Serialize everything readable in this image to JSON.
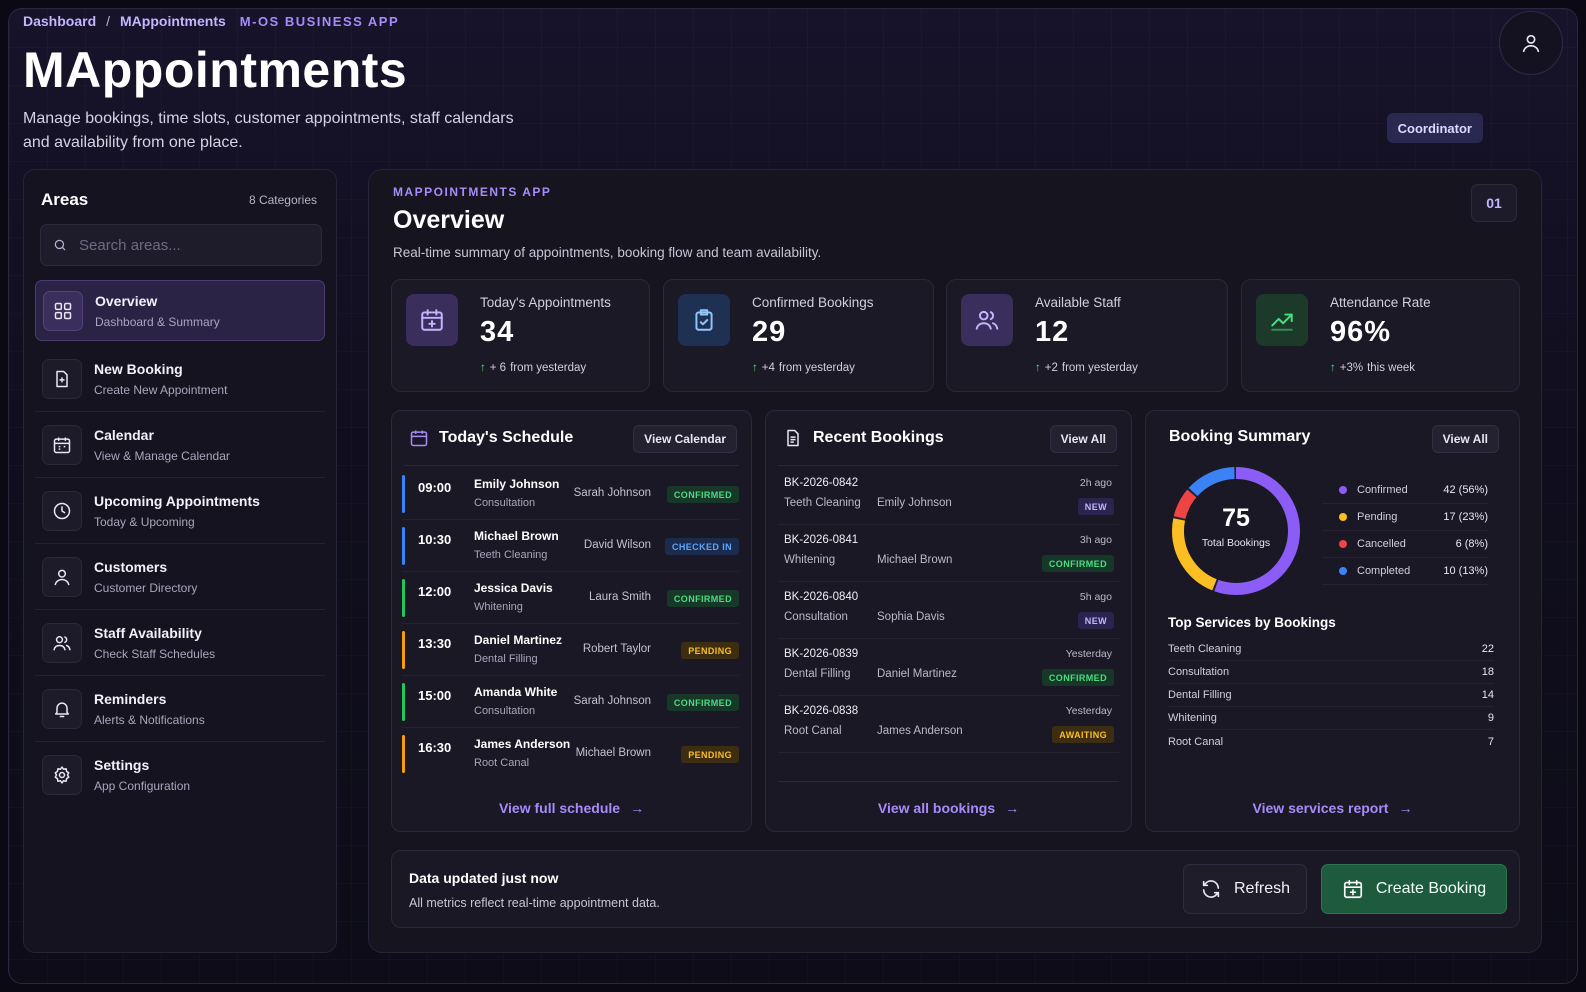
{
  "header": {
    "breadcrumb": [
      "Dashboard",
      "MAppointments"
    ],
    "breadcrumb_separator": "/",
    "app_tag": "M-OS BUSINESS APP",
    "title": "MAppointments",
    "description": "Manage bookings, time slots, customer appointments, staff calendars and availability from one place.",
    "role": "Coordinator",
    "avatar_icon": "user-icon"
  },
  "sidebar": {
    "title": "Areas",
    "count": "8 Categories",
    "search_placeholder": "Search areas...",
    "items": [
      {
        "label": "Overview",
        "sub": "Dashboard & Summary",
        "icon": "grid-icon",
        "active": true
      },
      {
        "label": "New Booking",
        "sub": "Create New Appointment",
        "icon": "file-plus-icon"
      },
      {
        "label": "Calendar",
        "sub": "View & Manage Calendar",
        "icon": "calendar-icon"
      },
      {
        "label": "Upcoming Appointments",
        "sub": "Today & Upcoming",
        "icon": "clock-icon"
      },
      {
        "label": "Customers",
        "sub": "Customer Directory",
        "icon": "user-icon"
      },
      {
        "label": "Staff Availability",
        "sub": "Check Staff Schedules",
        "icon": "users-icon"
      },
      {
        "label": "Reminders",
        "sub": "Alerts & Notifications",
        "icon": "bell-icon"
      },
      {
        "label": "Settings",
        "sub": "App Configuration",
        "icon": "gear-icon"
      }
    ]
  },
  "main": {
    "kicker": "MAPPOINTMENTS APP",
    "title": "Overview",
    "description": "Real-time summary of appointments, booking flow and team availability.",
    "page_number": "01",
    "stats": [
      {
        "label": "Today's Appointments",
        "value": "34",
        "delta": "+ 6",
        "delta_suffix": "from yesterday",
        "icon": "calendar-plus-icon",
        "color": "#a78bfa"
      },
      {
        "label": "Confirmed Bookings",
        "value": "29",
        "delta": "+4",
        "delta_suffix": "from yesterday",
        "icon": "clipboard-check-icon",
        "color": "#60a5fa"
      },
      {
        "label": "Available Staff",
        "value": "12",
        "delta": "+2",
        "delta_suffix": "from yesterday",
        "icon": "users-icon",
        "color": "#a78bfa"
      },
      {
        "label": "Attendance Rate",
        "value": "96%",
        "delta": "+3%",
        "delta_suffix": "this week",
        "icon": "trending-up-icon",
        "color": "#4ade80"
      }
    ]
  },
  "schedule": {
    "title": "Today's Schedule",
    "button": "View Calendar",
    "link": "View full schedule",
    "rows": [
      {
        "time": "09:00",
        "name": "Emily Johnson",
        "service": "Consultation",
        "staff": "Sarah Johnson",
        "status": "CONFIRMED",
        "kind": "confirmed",
        "bar": "#3b82f6"
      },
      {
        "time": "10:30",
        "name": "Michael Brown",
        "service": "Teeth Cleaning",
        "staff": "David Wilson",
        "status": "CHECKED IN",
        "kind": "checked",
        "bar": "#3b82f6"
      },
      {
        "time": "12:00",
        "name": "Jessica Davis",
        "service": "Whitening",
        "staff": "Laura Smith",
        "status": "CONFIRMED",
        "kind": "confirmed",
        "bar": "#22c55e"
      },
      {
        "time": "13:30",
        "name": "Daniel Martinez",
        "service": "Dental Filling",
        "staff": "Robert Taylor",
        "status": "PENDING",
        "kind": "pending",
        "bar": "#f59e0b"
      },
      {
        "time": "15:00",
        "name": "Amanda White",
        "service": "Consultation",
        "staff": "Sarah Johnson",
        "status": "CONFIRMED",
        "kind": "confirmed",
        "bar": "#22c55e"
      },
      {
        "time": "16:30",
        "name": "James Anderson",
        "service": "Root Canal",
        "staff": "Michael Brown",
        "status": "PENDING",
        "kind": "pending",
        "bar": "#f59e0b"
      }
    ]
  },
  "bookings": {
    "title": "Recent Bookings",
    "button": "View All",
    "link": "View all bookings",
    "rows": [
      {
        "id": "BK-2026-0842",
        "service": "Teeth Cleaning",
        "customer": "Emily Johnson",
        "time": "2h ago",
        "status": "NEW",
        "kind": "new"
      },
      {
        "id": "BK-2026-0841",
        "service": "Whitening",
        "customer": "Michael Brown",
        "time": "3h ago",
        "status": "CONFIRMED",
        "kind": "confirmed"
      },
      {
        "id": "BK-2026-0840",
        "service": "Consultation",
        "customer": "Sophia Davis",
        "time": "5h ago",
        "status": "NEW",
        "kind": "new"
      },
      {
        "id": "BK-2026-0839",
        "service": "Dental Filling",
        "customer": "Daniel Martinez",
        "time": "Yesterday",
        "status": "CONFIRMED",
        "kind": "confirmed"
      },
      {
        "id": "BK-2026-0838",
        "service": "Root Canal",
        "customer": "James Anderson",
        "time": "Yesterday",
        "status": "AWAITING",
        "kind": "awaiting"
      }
    ]
  },
  "summary": {
    "title": "Booking Summary",
    "button": "View All",
    "total": "75",
    "total_label": "Total Bookings",
    "legend": [
      {
        "label": "Confirmed",
        "value": "42 (56%)",
        "count": 42,
        "color": "#8b5cf6"
      },
      {
        "label": "Pending",
        "value": "17 (23%)",
        "count": 17,
        "color": "#fbbf24"
      },
      {
        "label": "Cancelled",
        "value": "6 (8%)",
        "count": 6,
        "color": "#ef4444"
      },
      {
        "label": "Completed",
        "value": "10 (13%)",
        "count": 10,
        "color": "#3b82f6"
      }
    ],
    "services_heading": "Top Services by Bookings",
    "services": [
      {
        "name": "Teeth Cleaning",
        "count": "22"
      },
      {
        "name": "Consultation",
        "count": "18"
      },
      {
        "name": "Dental Filling",
        "count": "14"
      },
      {
        "name": "Whitening",
        "count": "9"
      },
      {
        "name": "Root Canal",
        "count": "7"
      }
    ],
    "link": "View services report"
  },
  "footer": {
    "title": "Data updated just now",
    "description": "All metrics reflect real-time appointment data.",
    "refresh": "Refresh",
    "create": "Create Booking"
  }
}
